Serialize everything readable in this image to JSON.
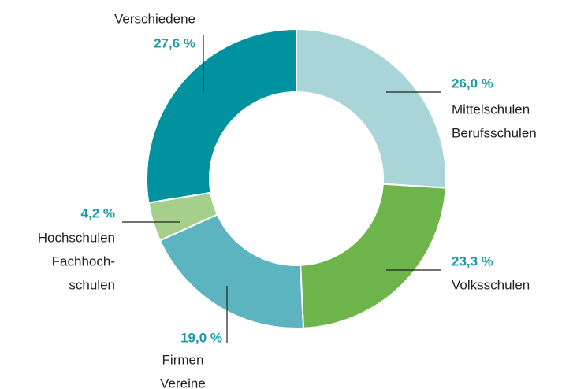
{
  "chart_data": {
    "type": "donut",
    "categories": [
      [
        "Mittelschulen",
        "Berufsschulen"
      ],
      [
        "Volksschulen"
      ],
      [
        "Firmen",
        "Vereine"
      ],
      [
        "Hochschulen",
        "Fachhoch-",
        "schulen"
      ],
      [
        "Verschiedene"
      ]
    ],
    "values": [
      26.0,
      23.3,
      19.0,
      4.2,
      27.6
    ],
    "value_labels": [
      "26,0 %",
      "23,3 %",
      "19,0 %",
      "4,2 %",
      "27,6 %"
    ],
    "colors": [
      "#a9d5d9",
      "#6db54a",
      "#5bb4bf",
      "#a5cf8a",
      "#00929e"
    ]
  }
}
